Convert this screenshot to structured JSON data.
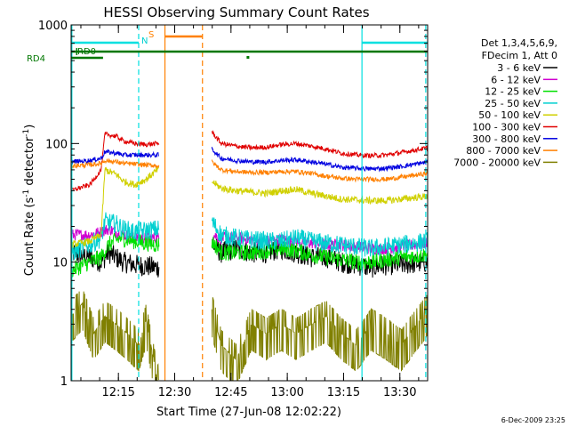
{
  "chart_data": {
    "type": "line",
    "title": "HESSI Observing Summary Count Rates",
    "xlabel": "Start Time (27-Jun-08 12:02:22)",
    "ylabel": "Count Rate (s",
    "ylabel_sup1": "-1",
    "ylabel_mid": " detector",
    "ylabel_sup2": "-1",
    "ylabel_end": ")",
    "y_scale": "log",
    "ylim": [
      1,
      1000
    ],
    "xlim_minutes": [
      0,
      95
    ],
    "x_ticks": [
      {
        "minute": 12.6,
        "label": "12:15"
      },
      {
        "minute": 27.6,
        "label": "12:30"
      },
      {
        "minute": 42.6,
        "label": "12:45"
      },
      {
        "minute": 57.6,
        "label": "13:00"
      },
      {
        "minute": 72.6,
        "label": "13:15"
      },
      {
        "minute": 87.6,
        "label": "13:30"
      }
    ],
    "y_ticks": [
      {
        "value": 1,
        "label": "1"
      },
      {
        "value": 10,
        "label": "10"
      },
      {
        "value": 100,
        "label": "100"
      },
      {
        "value": 1000,
        "label": "1000"
      }
    ],
    "legend": {
      "placement": "right",
      "header": [
        "Det 1,3,4,5,6,9,",
        "FDecim 1, Att 0"
      ]
    },
    "gap_minutes": [
      23.5,
      37.5
    ],
    "series": [
      {
        "name": "3 - 6 keV",
        "color": "#000000",
        "jitter": 0.09,
        "values": [
          [
            0,
            12
          ],
          [
            5,
            11
          ],
          [
            8,
            10
          ],
          [
            10,
            12
          ],
          [
            14,
            10
          ],
          [
            17,
            9.5
          ],
          [
            23,
            9
          ],
          [
            37.5,
            14
          ],
          [
            40,
            12
          ],
          [
            44,
            13
          ],
          [
            48,
            12
          ],
          [
            52,
            12
          ],
          [
            56,
            13
          ],
          [
            60,
            12
          ],
          [
            64,
            11
          ],
          [
            68,
            11
          ],
          [
            72,
            10
          ],
          [
            76,
            9.5
          ],
          [
            80,
            9
          ],
          [
            84,
            9.5
          ],
          [
            88,
            9.5
          ],
          [
            95,
            10
          ]
        ]
      },
      {
        "name": "6 - 12 keV",
        "color": "#d000d0",
        "jitter": 0.05,
        "values": [
          [
            0,
            17
          ],
          [
            5,
            17
          ],
          [
            8,
            18
          ],
          [
            10,
            19
          ],
          [
            14,
            17
          ],
          [
            17,
            16
          ],
          [
            23,
            16
          ],
          [
            37.5,
            17
          ],
          [
            40,
            16
          ],
          [
            44,
            16
          ],
          [
            48,
            15.5
          ],
          [
            52,
            15
          ],
          [
            56,
            15.5
          ],
          [
            60,
            15
          ],
          [
            64,
            14.5
          ],
          [
            68,
            14
          ],
          [
            72,
            14
          ],
          [
            76,
            13.5
          ],
          [
            80,
            13
          ],
          [
            84,
            13
          ],
          [
            88,
            13.5
          ],
          [
            95,
            14.5
          ]
        ]
      },
      {
        "name": "12 - 25 keV",
        "color": "#00e000",
        "jitter": 0.07,
        "values": [
          [
            0,
            8.5
          ],
          [
            5,
            10
          ],
          [
            8,
            11
          ],
          [
            10,
            14
          ],
          [
            13,
            16
          ],
          [
            17,
            15
          ],
          [
            23,
            14
          ],
          [
            37.5,
            15
          ],
          [
            40,
            12
          ],
          [
            44,
            12
          ],
          [
            48,
            12
          ],
          [
            52,
            12.5
          ],
          [
            56,
            13
          ],
          [
            60,
            12.5
          ],
          [
            64,
            11.5
          ],
          [
            68,
            11
          ],
          [
            72,
            10.5
          ],
          [
            76,
            10
          ],
          [
            80,
            10
          ],
          [
            84,
            10.5
          ],
          [
            88,
            11
          ],
          [
            95,
            11.5
          ]
        ]
      },
      {
        "name": "25 - 50 keV",
        "color": "#00d0d0",
        "jitter": 0.08,
        "values": [
          [
            0,
            12
          ],
          [
            5,
            14
          ],
          [
            8,
            16
          ],
          [
            9,
            22
          ],
          [
            12,
            21
          ],
          [
            14,
            19
          ],
          [
            17,
            18
          ],
          [
            23,
            19
          ],
          [
            37.5,
            22
          ],
          [
            40,
            17
          ],
          [
            44,
            16
          ],
          [
            48,
            15.5
          ],
          [
            52,
            15
          ],
          [
            56,
            15
          ],
          [
            60,
            16
          ],
          [
            64,
            15
          ],
          [
            68,
            14.5
          ],
          [
            72,
            14
          ],
          [
            76,
            13.5
          ],
          [
            80,
            13
          ],
          [
            84,
            13.5
          ],
          [
            88,
            14
          ],
          [
            95,
            15
          ]
        ]
      },
      {
        "name": "50 - 100 keV",
        "color": "#d0d000",
        "jitter": 0.03,
        "values": [
          [
            0,
            14
          ],
          [
            5,
            15
          ],
          [
            8,
            17
          ],
          [
            9,
            60
          ],
          [
            12,
            55
          ],
          [
            14,
            48
          ],
          [
            17,
            45
          ],
          [
            20,
            50
          ],
          [
            23,
            60
          ],
          [
            37.5,
            48
          ],
          [
            40,
            42
          ],
          [
            44,
            40
          ],
          [
            48,
            39
          ],
          [
            52,
            38
          ],
          [
            56,
            40
          ],
          [
            60,
            41
          ],
          [
            64,
            38
          ],
          [
            68,
            36
          ],
          [
            72,
            34
          ],
          [
            76,
            33.5
          ],
          [
            80,
            33
          ],
          [
            84,
            33
          ],
          [
            88,
            34
          ],
          [
            95,
            36
          ]
        ]
      },
      {
        "name": "100 - 300 keV",
        "color": "#e00000",
        "jitter": 0.02,
        "values": [
          [
            0,
            40
          ],
          [
            5,
            45
          ],
          [
            8,
            60
          ],
          [
            9,
            120
          ],
          [
            12,
            115
          ],
          [
            14,
            105
          ],
          [
            17,
            100
          ],
          [
            20,
            98
          ],
          [
            23,
            100
          ],
          [
            37.5,
            125
          ],
          [
            40,
            100
          ],
          [
            44,
            95
          ],
          [
            48,
            92
          ],
          [
            52,
            93
          ],
          [
            56,
            98
          ],
          [
            60,
            100
          ],
          [
            64,
            95
          ],
          [
            68,
            90
          ],
          [
            72,
            83
          ],
          [
            76,
            80
          ],
          [
            80,
            79
          ],
          [
            84,
            80
          ],
          [
            88,
            84
          ],
          [
            95,
            92
          ]
        ]
      },
      {
        "name": "300 - 800 keV",
        "color": "#0000e0",
        "jitter": 0.02,
        "values": [
          [
            0,
            70
          ],
          [
            5,
            72
          ],
          [
            8,
            75
          ],
          [
            9,
            85
          ],
          [
            12,
            83
          ],
          [
            14,
            80
          ],
          [
            17,
            80
          ],
          [
            23,
            80
          ],
          [
            37.5,
            90
          ],
          [
            40,
            75
          ],
          [
            44,
            72
          ],
          [
            48,
            70
          ],
          [
            52,
            70
          ],
          [
            56,
            72
          ],
          [
            60,
            73
          ],
          [
            64,
            70
          ],
          [
            68,
            67
          ],
          [
            72,
            63
          ],
          [
            76,
            62
          ],
          [
            80,
            61
          ],
          [
            84,
            62
          ],
          [
            88,
            64
          ],
          [
            95,
            70
          ]
        ]
      },
      {
        "name": "800 - 7000 keV",
        "color": "#ff8000",
        "jitter": 0.02,
        "values": [
          [
            0,
            65
          ],
          [
            5,
            66
          ],
          [
            8,
            68
          ],
          [
            9,
            72
          ],
          [
            12,
            70
          ],
          [
            14,
            68
          ],
          [
            17,
            67
          ],
          [
            23,
            65
          ],
          [
            37.5,
            70
          ],
          [
            40,
            60
          ],
          [
            44,
            58
          ],
          [
            48,
            57
          ],
          [
            52,
            57
          ],
          [
            56,
            58
          ],
          [
            60,
            58
          ],
          [
            64,
            56
          ],
          [
            68,
            53
          ],
          [
            72,
            51
          ],
          [
            76,
            50
          ],
          [
            80,
            50
          ],
          [
            84,
            50
          ],
          [
            88,
            52
          ],
          [
            95,
            56
          ]
        ]
      },
      {
        "name": "7000 - 20000 keV",
        "color": "#808000",
        "jitter": 0,
        "values": [
          [
            0,
            3.5
          ],
          [
            3,
            4.5
          ],
          [
            6,
            2.5
          ],
          [
            9,
            3.5
          ],
          [
            12,
            3
          ],
          [
            15,
            2.5
          ],
          [
            18,
            2
          ],
          [
            20,
            3.3
          ],
          [
            23,
            1
          ],
          [
            37.5,
            4
          ],
          [
            40,
            2
          ],
          [
            44,
            1.5
          ],
          [
            48,
            3
          ],
          [
            52,
            2.5
          ],
          [
            56,
            3
          ],
          [
            60,
            2.5
          ],
          [
            64,
            3
          ],
          [
            68,
            3.5
          ],
          [
            72,
            2.5
          ],
          [
            76,
            2
          ],
          [
            80,
            3
          ],
          [
            84,
            2.5
          ],
          [
            88,
            2
          ],
          [
            92,
            3
          ],
          [
            95,
            4
          ]
        ]
      }
    ],
    "annotations": [
      {
        "text": "RD4",
        "color": "#007700"
      },
      {
        "text": "RD0",
        "color": "#007700"
      },
      {
        "text": "N",
        "color": "#00d0d0"
      },
      {
        "text": "S",
        "color": "#ff8000"
      }
    ],
    "bars": [
      {
        "name": "cyan-N-bar-1",
        "color": "#00e0e0",
        "range": [
          0,
          18
        ]
      },
      {
        "name": "cyan-N-bar-2",
        "color": "#00e0e0",
        "range": [
          77.5,
          95
        ]
      },
      {
        "name": "green-RD0-bar",
        "color": "#007700",
        "range": [
          0,
          95
        ]
      },
      {
        "name": "green-RD4-bar",
        "color": "#007700",
        "range": [
          0,
          8.5
        ]
      },
      {
        "name": "orange-S-bar",
        "color": "#ff8000",
        "range": [
          25,
          35
        ]
      }
    ],
    "vlines": [
      {
        "minute": 0.2,
        "color": "#00e0e0",
        "style": "solid"
      },
      {
        "minute": 18,
        "color": "#00e0e0",
        "style": "dashed"
      },
      {
        "minute": 77.5,
        "color": "#00e0e0",
        "style": "solid"
      },
      {
        "minute": 94.5,
        "color": "#00e0e0",
        "style": "dashed"
      },
      {
        "minute": 25,
        "color": "#ff8000",
        "style": "solid"
      },
      {
        "minute": 35,
        "color": "#ff8000",
        "style": "dashed"
      }
    ],
    "footer_date": "6-Dec-2009 23:25"
  }
}
